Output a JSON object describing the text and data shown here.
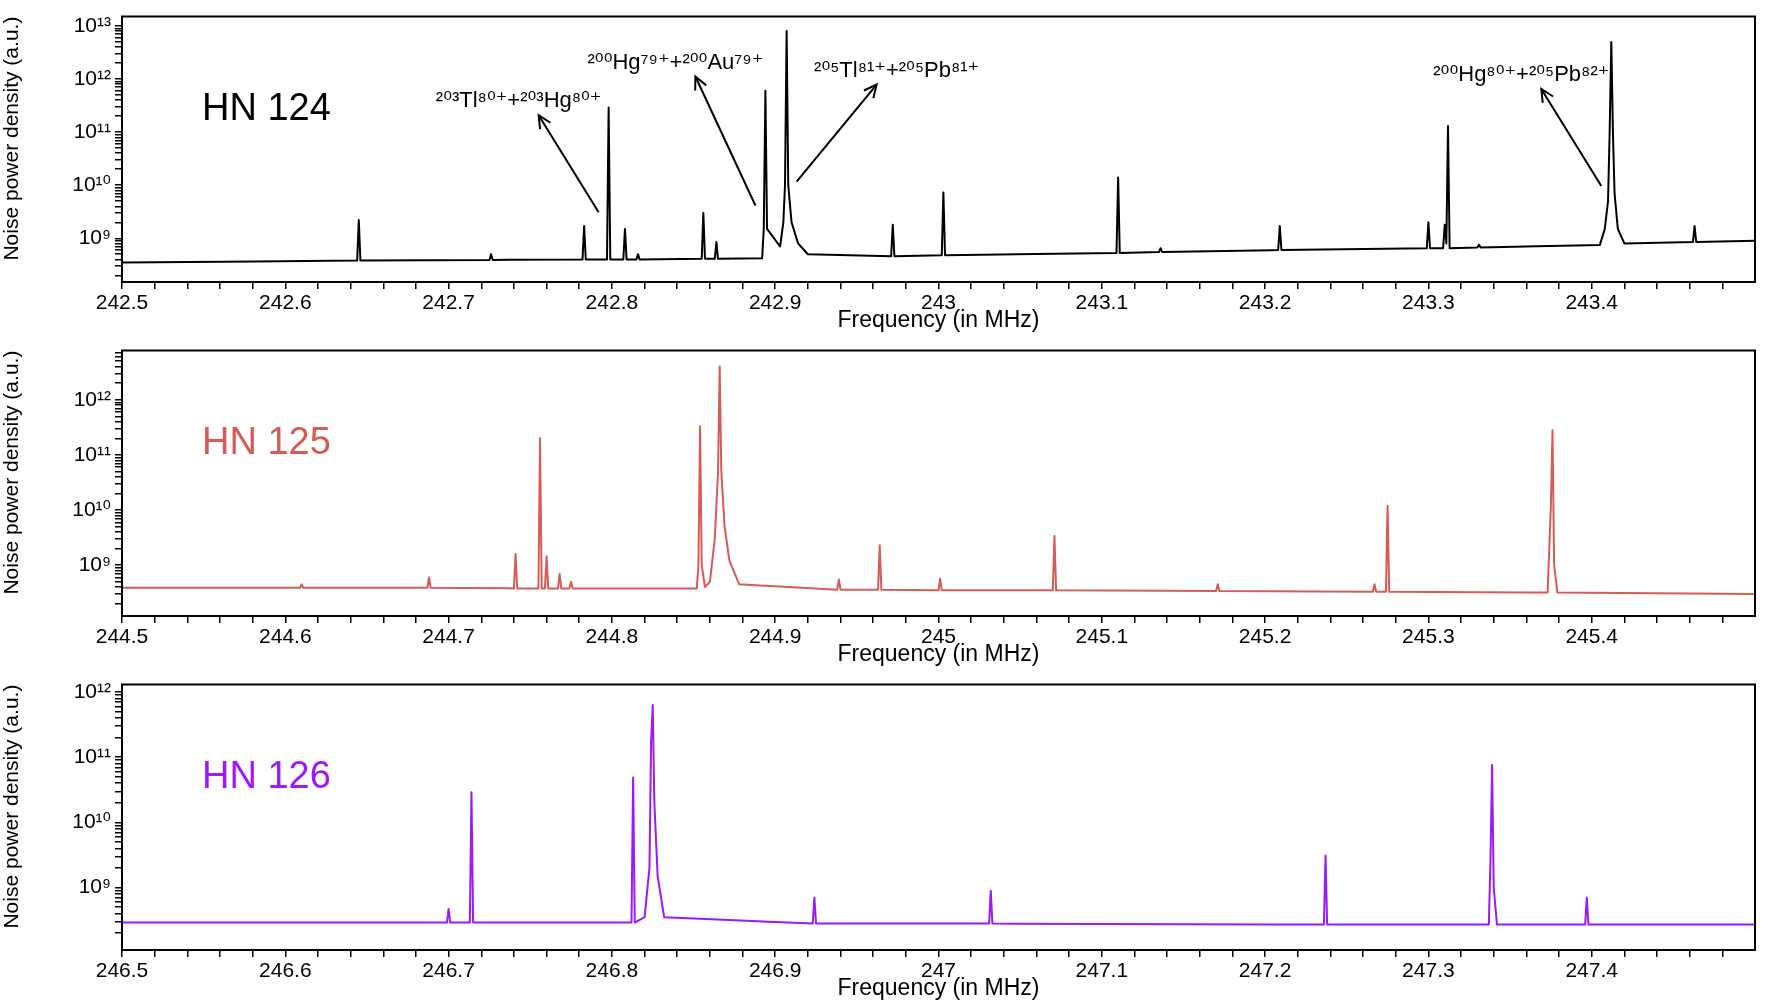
{
  "chart_data": [
    {
      "type": "line",
      "color": "#000000",
      "log": true,
      "xlabel": "Frequency (in MHz)",
      "ylabel": "Noise power density (a.u.)",
      "annotations": [
        "HN 124",
        {
          "text": "²⁰³Tl⁸⁰⁺+²⁰³Hg⁸⁰⁺",
          "x": 242.798,
          "y": 290000000000
        },
        {
          "text": "²⁰⁰Hg⁷⁹⁺+²⁰⁰Au⁷⁹⁺",
          "x": 242.894,
          "y": 600000000000
        },
        {
          "text": "²⁰⁵Tl⁸¹⁺+²⁰⁵Pb⁸¹⁺",
          "x": 242.907,
          "y": 8000000000000
        },
        {
          "text": "²⁰⁰Hg⁸⁰⁺+²⁰⁵Pb⁸²⁺",
          "x": 243.412,
          "y": 5000000000000
        }
      ],
      "xlim": [
        242.5,
        243.5
      ],
      "ylim": [
        150000000,
        15000000000000
      ],
      "xticks": [
        242.5,
        {
          "value": 242.52,
          "label": null
        },
        {
          "value": 242.54,
          "label": null
        },
        {
          "value": 242.56,
          "label": null
        },
        {
          "value": 242.58,
          "label": null
        },
        242.6,
        {
          "value": 242.62,
          "label": null
        },
        {
          "value": 242.64,
          "label": null
        },
        {
          "value": 242.66,
          "label": null
        },
        {
          "value": 242.68,
          "label": null
        },
        242.7,
        {
          "value": 242.72,
          "label": null
        },
        {
          "value": 242.74,
          "label": null
        },
        {
          "value": 242.76,
          "label": null
        },
        {
          "value": 242.78,
          "label": null
        },
        242.8,
        {
          "value": 242.82,
          "label": null
        },
        {
          "value": 242.84,
          "label": null
        },
        {
          "value": 242.86,
          "label": null
        },
        {
          "value": 242.88,
          "label": null
        },
        242.9,
        {
          "value": 242.92,
          "label": null
        },
        {
          "value": 242.94,
          "label": null
        },
        {
          "value": 242.96,
          "label": null
        },
        {
          "value": 242.98,
          "label": null
        },
        243,
        {
          "value": 243.02,
          "label": null
        },
        {
          "value": 243.04,
          "label": null
        },
        {
          "value": 243.06,
          "label": null
        },
        {
          "value": 243.08,
          "label": null
        },
        243.1,
        {
          "value": 243.12,
          "label": null
        },
        {
          "value": 243.14,
          "label": null
        },
        {
          "value": 243.16,
          "label": null
        },
        {
          "value": 243.18,
          "label": null
        },
        243.2,
        {
          "value": 243.22,
          "label": null
        },
        {
          "value": 243.24,
          "label": null
        },
        {
          "value": 243.26,
          "label": null
        },
        {
          "value": 243.28,
          "label": null
        },
        243.3,
        {
          "value": 243.32,
          "label": null
        },
        {
          "value": 243.34,
          "label": null
        },
        {
          "value": 243.36,
          "label": null
        },
        {
          "value": 243.38,
          "label": null
        },
        243.4,
        {
          "value": 243.42,
          "label": null
        },
        {
          "value": 243.44,
          "label": null
        },
        {
          "value": 243.46,
          "label": null
        },
        {
          "value": 243.48,
          "label": null
        }
      ],
      "yticks": [
        {
          "value": 200000000,
          "label": null
        },
        {
          "value": 300000000,
          "label": null
        },
        {
          "value": 400000000,
          "label": null
        },
        {
          "value": 500000000,
          "label": null
        },
        {
          "value": 600000000,
          "label": null
        },
        {
          "value": 700000000,
          "label": null
        },
        {
          "value": 800000000,
          "label": null
        },
        {
          "value": 900000000,
          "label": null
        },
        {
          "value": 1000000000,
          "label": "10⁹"
        },
        {
          "value": 2000000000,
          "label": null
        },
        {
          "value": 3000000000,
          "label": null
        },
        {
          "value": 4000000000,
          "label": null
        },
        {
          "value": 5000000000,
          "label": null
        },
        {
          "value": 6000000000,
          "label": null
        },
        {
          "value": 7000000000,
          "label": null
        },
        {
          "value": 8000000000,
          "label": null
        },
        {
          "value": 9000000000,
          "label": null
        },
        {
          "value": 10000000000,
          "label": "10¹⁰"
        },
        {
          "value": 20000000000,
          "label": null
        },
        {
          "value": 30000000000,
          "label": null
        },
        {
          "value": 40000000000,
          "label": null
        },
        {
          "value": 50000000000,
          "label": null
        },
        {
          "value": 60000000000,
          "label": null
        },
        {
          "value": 70000000000,
          "label": null
        },
        {
          "value": 80000000000,
          "label": null
        },
        {
          "value": 90000000000,
          "label": null
        },
        {
          "value": 100000000000,
          "label": "10¹¹"
        },
        {
          "value": 200000000000,
          "label": null
        },
        {
          "value": 300000000000,
          "label": null
        },
        {
          "value": 400000000000,
          "label": null
        },
        {
          "value": 500000000000,
          "label": null
        },
        {
          "value": 600000000000,
          "label": null
        },
        {
          "value": 700000000000,
          "label": null
        },
        {
          "value": 800000000000,
          "label": null
        },
        {
          "value": 900000000000,
          "label": null
        },
        {
          "value": 1000000000000,
          "label": "10¹²"
        },
        {
          "value": 2000000000000,
          "label": null
        },
        {
          "value": 3000000000000,
          "label": null
        },
        {
          "value": 4000000000000,
          "label": null
        },
        {
          "value": 5000000000000,
          "label": null
        },
        {
          "value": 6000000000000,
          "label": null
        },
        {
          "value": 7000000000000,
          "label": null
        },
        {
          "value": 8000000000000,
          "label": null
        },
        {
          "value": 9000000000000,
          "label": null
        },
        {
          "value": 10000000000000,
          "label": "10¹³"
        }
      ],
      "x": [
        242.5,
        242.644,
        242.645,
        242.646,
        242.725,
        242.726,
        242.727,
        242.782,
        242.783,
        242.784,
        242.797,
        242.798,
        242.799,
        242.807,
        242.808,
        242.809,
        242.815,
        242.816,
        242.817,
        242.855,
        242.856,
        242.857,
        242.863,
        242.864,
        242.865,
        242.892,
        242.893,
        242.894,
        242.895,
        242.903,
        242.905,
        242.906,
        242.907,
        242.908,
        242.91,
        242.914,
        242.92,
        242.971,
        242.972,
        242.973,
        243.002,
        243.003,
        243.004,
        243.109,
        243.11,
        243.111,
        243.135,
        243.136,
        243.137,
        243.208,
        243.209,
        243.21,
        243.299,
        243.3,
        243.301,
        243.309,
        243.31,
        243.311,
        243.312,
        243.313,
        243.33,
        243.331,
        243.332,
        243.405,
        243.408,
        243.41,
        243.411,
        243.412,
        243.413,
        243.414,
        243.416,
        243.42,
        243.462,
        243.463,
        243.464,
        243.5
      ],
      "values": [
        350000000,
        380000000,
        2200000000,
        380000000,
        390000000,
        500000000,
        390000000,
        400000000,
        1700000000,
        400000000,
        400000000,
        290000000000,
        400000000,
        400000000,
        1500000000,
        400000000,
        400000000,
        500000000,
        400000000,
        410000000,
        3000000000,
        410000000,
        410000000,
        850000000,
        410000000,
        420000000,
        1500000000,
        600000000000,
        1500000000,
        700000000,
        2000000000,
        10000000000,
        8000000000000,
        10000000000,
        2000000000,
        800000000,
        500000000,
        460000000,
        1800000000,
        460000000,
        480000000,
        7300000000,
        480000000,
        530000000,
        14000000000,
        530000000,
        550000000,
        650000000,
        550000000,
        600000000,
        1700000000,
        600000000,
        650000000,
        2000000000,
        650000000,
        650000000,
        1800000000,
        800000000,
        130000000000,
        650000000,
        670000000,
        750000000,
        670000000,
        750000000,
        1500000000,
        5000000000,
        100000000000,
        5000000000000,
        100000000000,
        7000000000,
        1500000000,
        800000000,
        850000000,
        1700000000,
        850000000,
        900000000
      ]
    },
    {
      "type": "line",
      "color": "#d65a55",
      "log": true,
      "xlabel": "Frequency (in MHz)",
      "ylabel": "Noise power density (a.u.)",
      "annotations": [
        "HN 125"
      ],
      "xlim": [
        244.5,
        245.5
      ],
      "ylim": [
        120000000,
        7800000000000
      ],
      "xticks": [
        244.5,
        {
          "value": 244.52,
          "label": null
        },
        {
          "value": 244.54,
          "label": null
        },
        {
          "value": 244.56,
          "label": null
        },
        {
          "value": 244.58,
          "label": null
        },
        244.6,
        {
          "value": 244.62,
          "label": null
        },
        {
          "value": 244.64,
          "label": null
        },
        {
          "value": 244.66,
          "label": null
        },
        {
          "value": 244.68,
          "label": null
        },
        244.7,
        {
          "value": 244.72,
          "label": null
        },
        {
          "value": 244.74,
          "label": null
        },
        {
          "value": 244.76,
          "label": null
        },
        {
          "value": 244.78,
          "label": null
        },
        244.8,
        {
          "value": 244.82,
          "label": null
        },
        {
          "value": 244.84,
          "label": null
        },
        {
          "value": 244.86,
          "label": null
        },
        {
          "value": 244.88,
          "label": null
        },
        244.9,
        {
          "value": 244.92,
          "label": null
        },
        {
          "value": 244.94,
          "label": null
        },
        {
          "value": 244.96,
          "label": null
        },
        {
          "value": 244.98,
          "label": null
        },
        245,
        {
          "value": 245.02,
          "label": null
        },
        {
          "value": 245.04,
          "label": null
        },
        {
          "value": 245.06,
          "label": null
        },
        {
          "value": 245.08,
          "label": null
        },
        245.1,
        {
          "value": 245.12,
          "label": null
        },
        {
          "value": 245.14,
          "label": null
        },
        {
          "value": 245.16,
          "label": null
        },
        {
          "value": 245.18,
          "label": null
        },
        245.2,
        {
          "value": 245.22,
          "label": null
        },
        {
          "value": 245.24,
          "label": null
        },
        {
          "value": 245.26,
          "label": null
        },
        {
          "value": 245.28,
          "label": null
        },
        245.3,
        {
          "value": 245.32,
          "label": null
        },
        {
          "value": 245.34,
          "label": null
        },
        {
          "value": 245.36,
          "label": null
        },
        {
          "value": 245.38,
          "label": null
        },
        245.4,
        {
          "value": 245.42,
          "label": null
        },
        {
          "value": 245.44,
          "label": null
        },
        {
          "value": 245.46,
          "label": null
        },
        {
          "value": 245.48,
          "label": null
        }
      ],
      "yticks": [
        {
          "value": 200000000,
          "label": null
        },
        {
          "value": 300000000,
          "label": null
        },
        {
          "value": 400000000,
          "label": null
        },
        {
          "value": 500000000,
          "label": null
        },
        {
          "value": 600000000,
          "label": null
        },
        {
          "value": 700000000,
          "label": null
        },
        {
          "value": 800000000,
          "label": null
        },
        {
          "value": 900000000,
          "label": null
        },
        {
          "value": 1000000000,
          "label": "10⁹"
        },
        {
          "value": 2000000000,
          "label": null
        },
        {
          "value": 3000000000,
          "label": null
        },
        {
          "value": 4000000000,
          "label": null
        },
        {
          "value": 5000000000,
          "label": null
        },
        {
          "value": 6000000000,
          "label": null
        },
        {
          "value": 7000000000,
          "label": null
        },
        {
          "value": 8000000000,
          "label": null
        },
        {
          "value": 9000000000,
          "label": null
        },
        {
          "value": 10000000000,
          "label": "10¹⁰"
        },
        {
          "value": 20000000000,
          "label": null
        },
        {
          "value": 30000000000,
          "label": null
        },
        {
          "value": 40000000000,
          "label": null
        },
        {
          "value": 50000000000,
          "label": null
        },
        {
          "value": 60000000000,
          "label": null
        },
        {
          "value": 70000000000,
          "label": null
        },
        {
          "value": 80000000000,
          "label": null
        },
        {
          "value": 90000000000,
          "label": null
        },
        {
          "value": 100000000000,
          "label": "10¹¹"
        },
        {
          "value": 200000000000,
          "label": null
        },
        {
          "value": 300000000000,
          "label": null
        },
        {
          "value": 400000000000,
          "label": null
        },
        {
          "value": 500000000000,
          "label": null
        },
        {
          "value": 600000000000,
          "label": null
        },
        {
          "value": 700000000000,
          "label": null
        },
        {
          "value": 800000000000,
          "label": null
        },
        {
          "value": 900000000000,
          "label": null
        },
        {
          "value": 1000000000000,
          "label": "10¹²"
        },
        {
          "value": 2000000000000,
          "label": null
        },
        {
          "value": 3000000000000,
          "label": null
        },
        {
          "value": 4000000000000,
          "label": null
        },
        {
          "value": 5000000000000,
          "label": null
        },
        {
          "value": 6000000000000,
          "label": null
        },
        {
          "value": 7000000000000,
          "label": null
        }
      ],
      "x": [
        244.5,
        244.609,
        244.61,
        244.611,
        244.687,
        244.688,
        244.689,
        244.74,
        244.741,
        244.742,
        244.755,
        244.756,
        244.757,
        244.759,
        244.76,
        244.761,
        244.767,
        244.768,
        244.769,
        244.774,
        244.775,
        244.776,
        244.852,
        244.853,
        244.854,
        244.855,
        244.857,
        244.86,
        244.863,
        244.865,
        244.866,
        244.867,
        244.869,
        244.872,
        244.878,
        244.938,
        244.939,
        244.94,
        244.963,
        244.964,
        244.965,
        245,
        245.001,
        245.002,
        245.07,
        245.071,
        245.072,
        245.17,
        245.171,
        245.172,
        245.266,
        245.267,
        245.268,
        245.274,
        245.275,
        245.276,
        245.373,
        245.375,
        245.376,
        245.377,
        245.379,
        245.5
      ],
      "values": [
        390000000,
        390000000,
        450000000,
        390000000,
        390000000,
        600000000,
        390000000,
        380000000,
        1600000000,
        380000000,
        380000000,
        200000000000,
        380000000,
        380000000,
        1450000000,
        380000000,
        380000000,
        700000000,
        380000000,
        380000000,
        500000000,
        380000000,
        380000000,
        1000000000,
        330000000000,
        1000000000,
        400000000,
        500000000,
        3000000000,
        50000000000,
        4000000000000,
        50000000000,
        5000000000,
        1200000000,
        450000000,
        360000000,
        550000000,
        360000000,
        360000000,
        2300000000,
        360000000,
        350000000,
        570000000,
        350000000,
        350000000,
        3400000000,
        350000000,
        340000000,
        450000000,
        340000000,
        330000000,
        450000000,
        330000000,
        330000000,
        12000000000,
        330000000,
        320000000,
        12000000000,
        280000000000,
        1000000000,
        320000000,
        300000000
      ]
    },
    {
      "type": "line",
      "color": "#9d19f5",
      "log": true,
      "xlabel": "Frequency (in MHz)",
      "ylabel": "Noise power density (a.u.)",
      "annotations": [
        "HN 126"
      ],
      "xlim": [
        246.5,
        247.5
      ],
      "ylim": [
        110000000,
        1300000000000
      ],
      "xticks": [
        246.5,
        {
          "value": 246.52,
          "label": null
        },
        {
          "value": 246.54,
          "label": null
        },
        {
          "value": 246.56,
          "label": null
        },
        {
          "value": 246.58,
          "label": null
        },
        246.6,
        {
          "value": 246.62,
          "label": null
        },
        {
          "value": 246.64,
          "label": null
        },
        {
          "value": 246.66,
          "label": null
        },
        {
          "value": 246.68,
          "label": null
        },
        246.7,
        {
          "value": 246.72,
          "label": null
        },
        {
          "value": 246.74,
          "label": null
        },
        {
          "value": 246.76,
          "label": null
        },
        {
          "value": 246.78,
          "label": null
        },
        246.8,
        {
          "value": 246.82,
          "label": null
        },
        {
          "value": 246.84,
          "label": null
        },
        {
          "value": 246.86,
          "label": null
        },
        {
          "value": 246.88,
          "label": null
        },
        246.9,
        {
          "value": 246.92,
          "label": null
        },
        {
          "value": 246.94,
          "label": null
        },
        {
          "value": 246.96,
          "label": null
        },
        {
          "value": 246.98,
          "label": null
        },
        247,
        {
          "value": 247.02,
          "label": null
        },
        {
          "value": 247.04,
          "label": null
        },
        {
          "value": 247.06,
          "label": null
        },
        {
          "value": 247.08,
          "label": null
        },
        247.1,
        {
          "value": 247.12,
          "label": null
        },
        {
          "value": 247.14,
          "label": null
        },
        {
          "value": 247.16,
          "label": null
        },
        {
          "value": 247.18,
          "label": null
        },
        247.2,
        {
          "value": 247.22,
          "label": null
        },
        {
          "value": 247.24,
          "label": null
        },
        {
          "value": 247.26,
          "label": null
        },
        {
          "value": 247.28,
          "label": null
        },
        247.3,
        {
          "value": 247.32,
          "label": null
        },
        {
          "value": 247.34,
          "label": null
        },
        {
          "value": 247.36,
          "label": null
        },
        {
          "value": 247.38,
          "label": null
        },
        247.4,
        {
          "value": 247.42,
          "label": null
        },
        {
          "value": 247.44,
          "label": null
        },
        {
          "value": 247.46,
          "label": null
        },
        {
          "value": 247.48,
          "label": null
        }
      ],
      "yticks": [
        {
          "value": 200000000,
          "label": null
        },
        {
          "value": 300000000,
          "label": null
        },
        {
          "value": 400000000,
          "label": null
        },
        {
          "value": 500000000,
          "label": null
        },
        {
          "value": 600000000,
          "label": null
        },
        {
          "value": 700000000,
          "label": null
        },
        {
          "value": 800000000,
          "label": null
        },
        {
          "value": 900000000,
          "label": null
        },
        {
          "value": 1000000000,
          "label": "10⁹"
        },
        {
          "value": 2000000000,
          "label": null
        },
        {
          "value": 3000000000,
          "label": null
        },
        {
          "value": 4000000000,
          "label": null
        },
        {
          "value": 5000000000,
          "label": null
        },
        {
          "value": 6000000000,
          "label": null
        },
        {
          "value": 7000000000,
          "label": null
        },
        {
          "value": 8000000000,
          "label": null
        },
        {
          "value": 9000000000,
          "label": null
        },
        {
          "value": 10000000000,
          "label": "10¹⁰"
        },
        {
          "value": 20000000000,
          "label": null
        },
        {
          "value": 30000000000,
          "label": null
        },
        {
          "value": 40000000000,
          "label": null
        },
        {
          "value": 50000000000,
          "label": null
        },
        {
          "value": 60000000000,
          "label": null
        },
        {
          "value": 70000000000,
          "label": null
        },
        {
          "value": 80000000000,
          "label": null
        },
        {
          "value": 90000000000,
          "label": null
        },
        {
          "value": 100000000000,
          "label": "10¹¹"
        },
        {
          "value": 200000000000,
          "label": null
        },
        {
          "value": 300000000000,
          "label": null
        },
        {
          "value": 400000000000,
          "label": null
        },
        {
          "value": 500000000000,
          "label": null
        },
        {
          "value": 600000000000,
          "label": null
        },
        {
          "value": 700000000000,
          "label": null
        },
        {
          "value": 800000000000,
          "label": null
        },
        {
          "value": 900000000000,
          "label": null
        },
        {
          "value": 1000000000000,
          "label": "10¹²"
        }
      ],
      "x": [
        246.5,
        246.699,
        246.7,
        246.701,
        246.713,
        246.714,
        246.715,
        246.812,
        246.813,
        246.814,
        246.82,
        246.823,
        246.824,
        246.825,
        246.826,
        246.828,
        246.832,
        246.923,
        246.924,
        246.925,
        247.031,
        247.032,
        247.033,
        247.236,
        247.237,
        247.238,
        247.337,
        247.338,
        247.339,
        247.34,
        247.342,
        247.396,
        247.397,
        247.398,
        247.5
      ],
      "values": [
        290000000,
        290000000,
        470000000,
        290000000,
        290000000,
        29000000000,
        290000000,
        290000000,
        49000000000,
        290000000,
        350000000,
        2000000000,
        170000000000,
        630000000000,
        20000000000,
        1500000000,
        350000000,
        280000000,
        700000000,
        280000000,
        280000000,
        890000000,
        280000000,
        270000000,
        3100000000,
        270000000,
        270000000,
        2500000000,
        76000000000,
        1000000000,
        270000000,
        270000000,
        700000000,
        270000000,
        270000000
      ]
    }
  ]
}
